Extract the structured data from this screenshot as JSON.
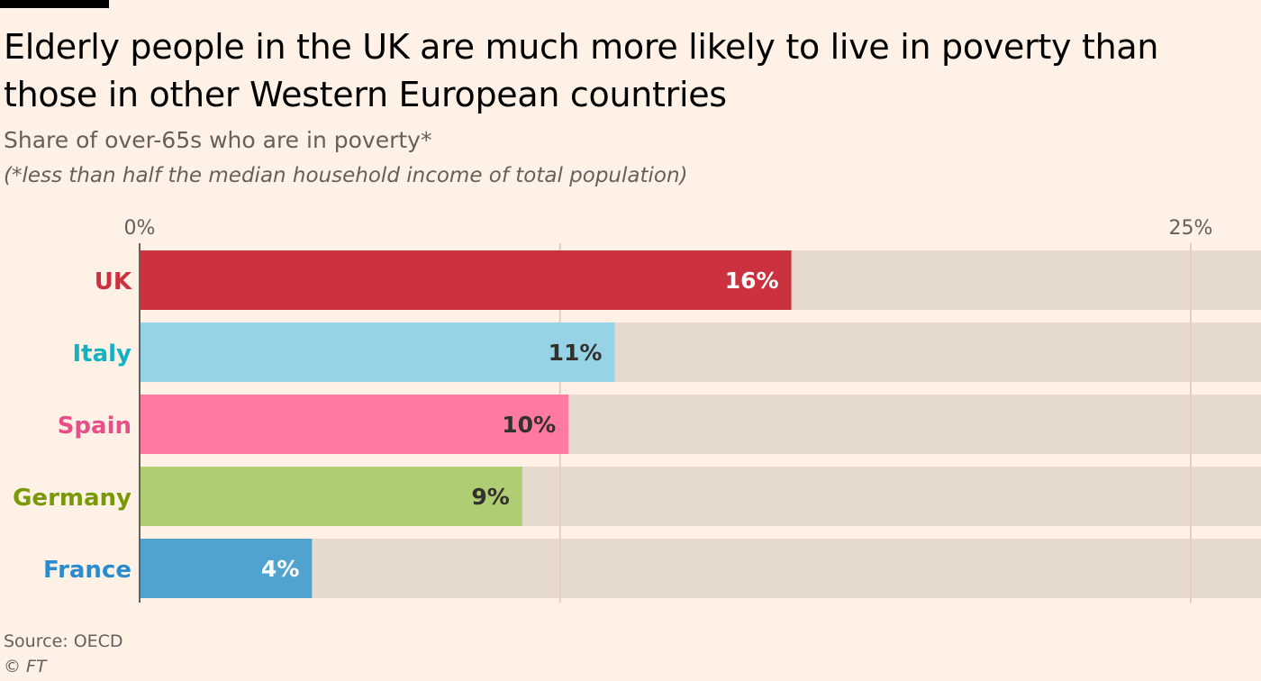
{
  "title": "Elderly people in the UK are much more likely to live in poverty than those in other Western European countries",
  "subtitle": "Share of over-65s who are in poverty*",
  "note": "(*less than half the median household income of total population)",
  "source": "Source: OECD",
  "credit": "© FT",
  "colors": {
    "background": "#FFF1E5",
    "track": "#E6D9CE",
    "grid": "#E0D0C2",
    "axis": "#66605C",
    "tick_text": "#66605C"
  },
  "chart_data": {
    "type": "bar",
    "orientation": "horizontal",
    "categories": [
      "UK",
      "Italy",
      "Spain",
      "Germany",
      "France"
    ],
    "values": [
      15.5,
      11.3,
      10.2,
      9.1,
      4.1
    ],
    "value_labels": [
      "16%",
      "11%",
      "10%",
      "9%",
      "4%"
    ],
    "xlim": [
      0,
      25
    ],
    "xticks": [
      {
        "value": 0,
        "label": "0%"
      },
      {
        "value": 10,
        "label": ""
      },
      {
        "value": 25,
        "label": "25%"
      }
    ],
    "bar_colors": [
      "#CC3140",
      "#96D3E6",
      "#FF7AA1",
      "#AFCD72",
      "#50A3CF"
    ],
    "category_label_colors": [
      "#CC3140",
      "#13B2C2",
      "#E84F8A",
      "#799A08",
      "#2A8CCC"
    ],
    "value_label_colors": [
      "#FFFFFF",
      "#33302E",
      "#33302E",
      "#33302E",
      "#FFFFFF"
    ],
    "grid": true,
    "xlabel": "",
    "ylabel": ""
  }
}
